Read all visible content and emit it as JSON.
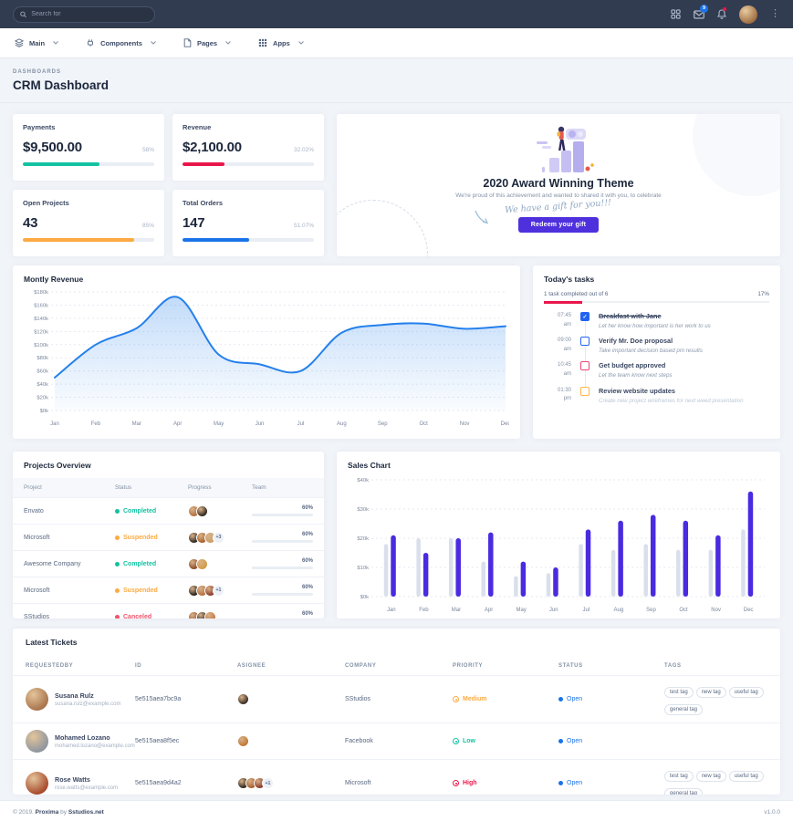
{
  "topbar": {
    "search_placeholder": "Search for",
    "badge_count": "9",
    "icons": [
      "grid-icon",
      "mail-icon",
      "bell-icon",
      "avatar",
      "kebab-menu-icon"
    ]
  },
  "nav": {
    "items": [
      {
        "label": "Main",
        "icon": "layers-icon"
      },
      {
        "label": "Components",
        "icon": "plug-icon"
      },
      {
        "label": "Pages",
        "icon": "file-icon"
      },
      {
        "label": "Apps",
        "icon": "apps-grid-icon"
      }
    ]
  },
  "page": {
    "breadcrumb": "DASHBOARDS",
    "title": "CRM Dashboard"
  },
  "stats": [
    {
      "title": "Payments",
      "value": "$9,500.00",
      "percent_label": "58%",
      "fill": 58,
      "color": "#13c2a1"
    },
    {
      "title": "Revenue",
      "value": "$2,100.00",
      "percent_label": "32.02%",
      "fill": 32,
      "color": "#e8174b"
    },
    {
      "title": "Open Projects",
      "value": "43",
      "percent_label": "85%",
      "fill": 85,
      "color": "#fdaa42"
    },
    {
      "title": "Total Orders",
      "value": "147",
      "percent_label": "51.07%",
      "fill": 51,
      "color": "#1a73e8"
    }
  ],
  "award": {
    "title": "2020 Award Winning Theme",
    "subtitle": "We're proud of this achievement and wanted to shared it with you, to celebrate",
    "gift_text": "We have a gift for you!!!",
    "button_label": "Redeem your gift",
    "button_color": "#4f30dd"
  },
  "tasks": {
    "title": "Today's tasks",
    "summary": "1 task completed out of 6",
    "percent_label": "17%",
    "progress": 17,
    "progress_color": "#e8174b",
    "items": [
      {
        "time": "07:45",
        "meridiem": "am",
        "title": "Breakfast with Jane",
        "subtitle": "Let her know how important is her work to us",
        "checked": true,
        "done": true,
        "color": "#2264f1",
        "muted": false
      },
      {
        "time": "09:00",
        "meridiem": "am",
        "title": "Verify Mr. Doe proposal",
        "subtitle": "Take important decision based pm results",
        "checked": false,
        "done": false,
        "color": "#2264f1",
        "muted": false
      },
      {
        "time": "10:45",
        "meridiem": "am",
        "title": "Get budget approved",
        "subtitle": "Let the team know next steps",
        "checked": false,
        "done": false,
        "color": "#ec4673",
        "muted": false
      },
      {
        "time": "01:30",
        "meridiem": "pm",
        "title": "Review website updates",
        "subtitle": "Create new project wireframes for next weed presentation",
        "checked": false,
        "done": false,
        "color": "#ffb54a",
        "muted": true
      }
    ]
  },
  "projects": {
    "title": "Projects Overview",
    "headers": [
      "Project",
      "Status",
      "Progress",
      "Team"
    ],
    "rows": [
      {
        "name": "Envato",
        "status": "Completed",
        "status_color": "#13c2a1",
        "avatars": [
          "#b5713f",
          "#32281f"
        ],
        "extra": "",
        "progress": 60,
        "progress_label": "60%"
      },
      {
        "name": "Microsoft",
        "status": "Suspended",
        "status_color": "#fdaa42",
        "avatars": [
          "#2e2620",
          "#a8612c",
          "#c7a06b"
        ],
        "extra": "+3",
        "progress": 60,
        "progress_label": "60%"
      },
      {
        "name": "Awesome Company",
        "status": "Completed",
        "status_color": "#13c2a1",
        "avatars": [
          "#8a4a2a",
          "#d29b43"
        ],
        "extra": "",
        "progress": 60,
        "progress_label": "60%"
      },
      {
        "name": "Microsoft",
        "status": "Suspended",
        "status_color": "#fdaa42",
        "avatars": [
          "#23201c",
          "#b5713f",
          "#8a3b2a"
        ],
        "extra": "+1",
        "progress": 60,
        "progress_label": "60%"
      },
      {
        "name": "SStudios",
        "status": "Canceled",
        "status_color": "#f1536e",
        "avatars": [
          "#9c5a32",
          "#2e2620",
          "#c77b4b"
        ],
        "extra": "",
        "progress": 60,
        "progress_label": "60%"
      }
    ]
  },
  "sales": {
    "title": "Sales Chart"
  },
  "tickets": {
    "title": "Latest Tickets",
    "headers": [
      "REQUESTEDBY",
      "ID",
      "ASIGNEE",
      "COMPANY",
      "PRIORITY",
      "STATUS",
      "TAGS"
    ],
    "rows": [
      {
        "name": "Susana Rulz",
        "email": "susana.rulz@example.com",
        "avatar": "#a9744c",
        "id": "5e515aea7bc9a",
        "assignees": [
          "#3a3028"
        ],
        "extra": "",
        "company": "SStudios",
        "priority": "Medium",
        "priority_color": "#fdaa42",
        "status": "Open",
        "status_color": "#1a73e8",
        "tags": [
          "test tag",
          "new tag",
          "useful tag",
          "general tag"
        ]
      },
      {
        "name": "Mohamed Lozano",
        "email": "mohamed.lozano@example.com",
        "avatar": "#8f969e",
        "id": "5e515aea8f5ec",
        "assignees": [
          "#c07a35"
        ],
        "extra": "",
        "company": "Facebook",
        "priority": "Low",
        "priority_color": "#13c2a1",
        "status": "Open",
        "status_color": "#1a73e8",
        "tags": []
      },
      {
        "name": "Rose Watts",
        "email": "rose.watts@example.com",
        "avatar": "#a84a2c",
        "id": "5e515aea9d4a2",
        "assignees": [
          "#2e2620",
          "#a8612c",
          "#8a3b2a"
        ],
        "extra": "+1",
        "company": "Microsoft",
        "priority": "High",
        "priority_color": "#e8174b",
        "status": "Open",
        "status_color": "#1a73e8",
        "tags": [
          "test tag",
          "new tag",
          "useful tag",
          "general tag"
        ]
      }
    ]
  },
  "footer": {
    "prefix": "© 2019. ",
    "brand": "Proxima",
    "by": " by ",
    "site": "Sstudios.net",
    "version": "v1.0.0"
  },
  "chart_data": [
    {
      "type": "area",
      "title": "Montly Revenue",
      "x": [
        "Jan",
        "Feb",
        "Mar",
        "Apr",
        "May",
        "Jun",
        "Jul",
        "Aug",
        "Sep",
        "Oct",
        "Nov",
        "Dec"
      ],
      "values": [
        50,
        100,
        125,
        172,
        85,
        70,
        60,
        118,
        130,
        132,
        124,
        128
      ],
      "unit": "k USD",
      "ylim": [
        0,
        180
      ],
      "y_ticks": [
        "$0k",
        "$20k",
        "$40k",
        "$60k",
        "$80k",
        "$100k",
        "$120k",
        "$140k",
        "$160k",
        "$180k"
      ],
      "grid": true,
      "line_color": "#2580ec"
    },
    {
      "type": "bar",
      "title": "Sales Chart",
      "categories": [
        "Jan",
        "Feb",
        "Mar",
        "Apr",
        "May",
        "Jun",
        "Jul",
        "Aug",
        "Sep",
        "Oct",
        "Nov",
        "Dec"
      ],
      "series": [
        {
          "name": "series1",
          "color": "#d9e0ec",
          "values": [
            18,
            20,
            20,
            12,
            7,
            8,
            18,
            16,
            18,
            16,
            16,
            23
          ]
        },
        {
          "name": "series2",
          "color": "#4a2be0",
          "values": [
            21,
            15,
            20,
            22,
            12,
            10,
            23,
            26,
            28,
            26,
            21,
            36
          ]
        }
      ],
      "unit": "k USD",
      "ylim": [
        0,
        40
      ],
      "y_ticks": [
        "$0k",
        "$10k",
        "$20k",
        "$30k",
        "$40k"
      ],
      "grid": true
    }
  ]
}
